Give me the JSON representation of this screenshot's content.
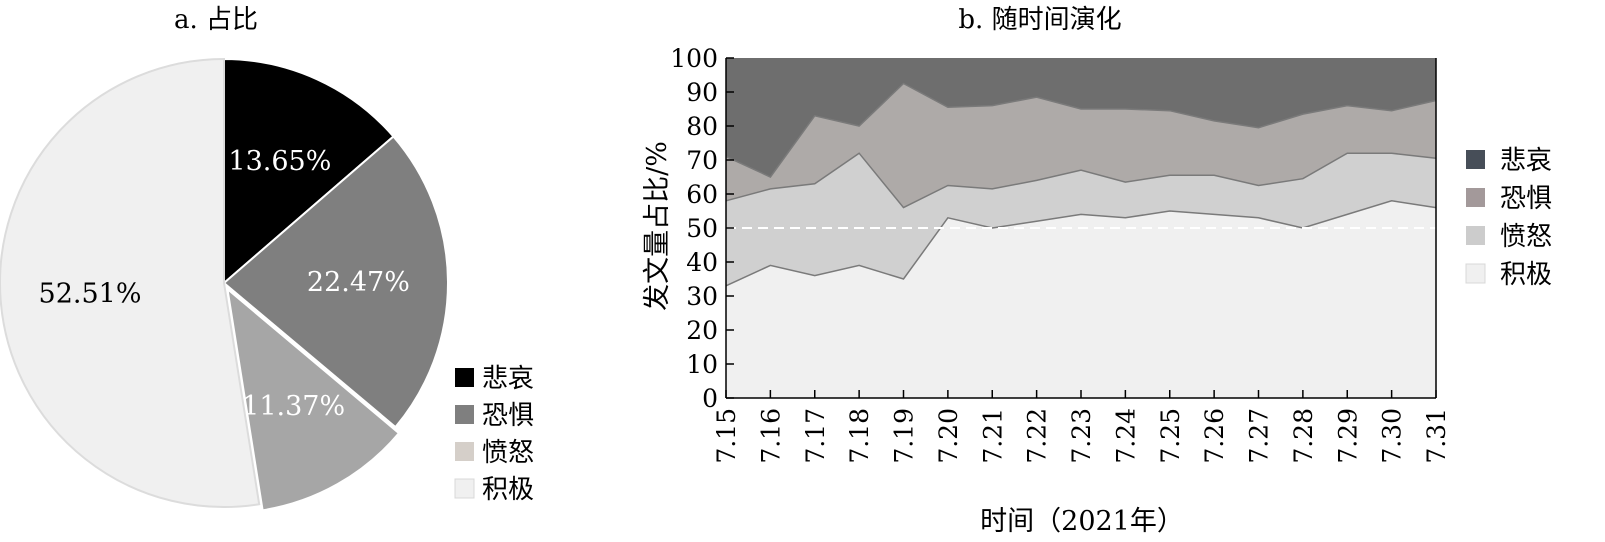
{
  "chart_data": [
    {
      "type": "pie",
      "title": "a. 占比",
      "categories": [
        "悲哀",
        "恐惧",
        "愤怒",
        "积极"
      ],
      "values": [
        13.65,
        22.47,
        11.37,
        52.51
      ],
      "value_labels": [
        "13.65%",
        "22.47%",
        "11.37%",
        "52.51%"
      ],
      "colors": [
        "#000000",
        "#7f7f7f",
        "#a6a6a6",
        "#f0f0f0"
      ],
      "label_colors": [
        "#ffffff",
        "#ffffff",
        "#ffffff",
        "#000000"
      ],
      "legend": {
        "position": "bottom-right",
        "items": [
          {
            "label": "悲哀",
            "color": "#000000"
          },
          {
            "label": "恐惧",
            "color": "#7f7f7f"
          },
          {
            "label": "愤怒",
            "color": "#d5cfc9"
          },
          {
            "label": "积极",
            "color": "#f0f0f0"
          }
        ]
      }
    },
    {
      "type": "area",
      "stacked": true,
      "title": "b. 随时间演化",
      "xlabel": "时间（2021年）",
      "ylabel": "发文量占比/%",
      "x": [
        "7.15",
        "7.16",
        "7.17",
        "7.18",
        "7.19",
        "7.20",
        "7.21",
        "7.22",
        "7.23",
        "7.24",
        "7.25",
        "7.26",
        "7.27",
        "7.28",
        "7.29",
        "7.30",
        "7.31"
      ],
      "ylim": [
        0,
        100
      ],
      "yticks": [
        "0",
        "10",
        "20",
        "30",
        "40",
        "50",
        "60",
        "70",
        "80",
        "90",
        "100"
      ],
      "series": [
        {
          "name": "积极",
          "color": "#f0f0f0",
          "values": [
            33,
            39,
            36,
            39,
            35,
            53,
            50,
            52,
            54,
            53,
            55,
            54,
            53,
            50,
            54,
            58,
            56
          ]
        },
        {
          "name": "愤怒",
          "color": "#d0d0d0",
          "values": [
            25,
            22.5,
            27,
            33,
            21,
            9.5,
            11.5,
            12,
            13,
            10.5,
            10.5,
            11.5,
            9.5,
            14.5,
            18,
            14,
            14.5
          ]
        },
        {
          "name": "恐惧",
          "color": "#aeaaa8",
          "values": [
            13,
            3.5,
            20,
            8,
            36.5,
            23,
            24.5,
            24.5,
            18,
            21.5,
            19,
            16,
            17,
            19,
            14,
            12.5,
            17
          ]
        },
        {
          "name": "悲哀",
          "color": "#6e6e6e",
          "values": [
            29,
            35,
            17,
            20,
            7.5,
            14.5,
            14,
            11.5,
            15,
            15,
            15.5,
            18.5,
            20.5,
            16.5,
            14,
            15.5,
            12.5
          ]
        }
      ],
      "reference_line": {
        "y": 50,
        "style": "dashed"
      },
      "legend": {
        "position": "right",
        "items": [
          {
            "label": "悲哀",
            "color": "#474e58"
          },
          {
            "label": "恐惧",
            "color": "#a3999a"
          },
          {
            "label": "愤怒",
            "color": "#cccccc"
          },
          {
            "label": "积极",
            "color": "#f0f0f0"
          }
        ]
      }
    }
  ]
}
